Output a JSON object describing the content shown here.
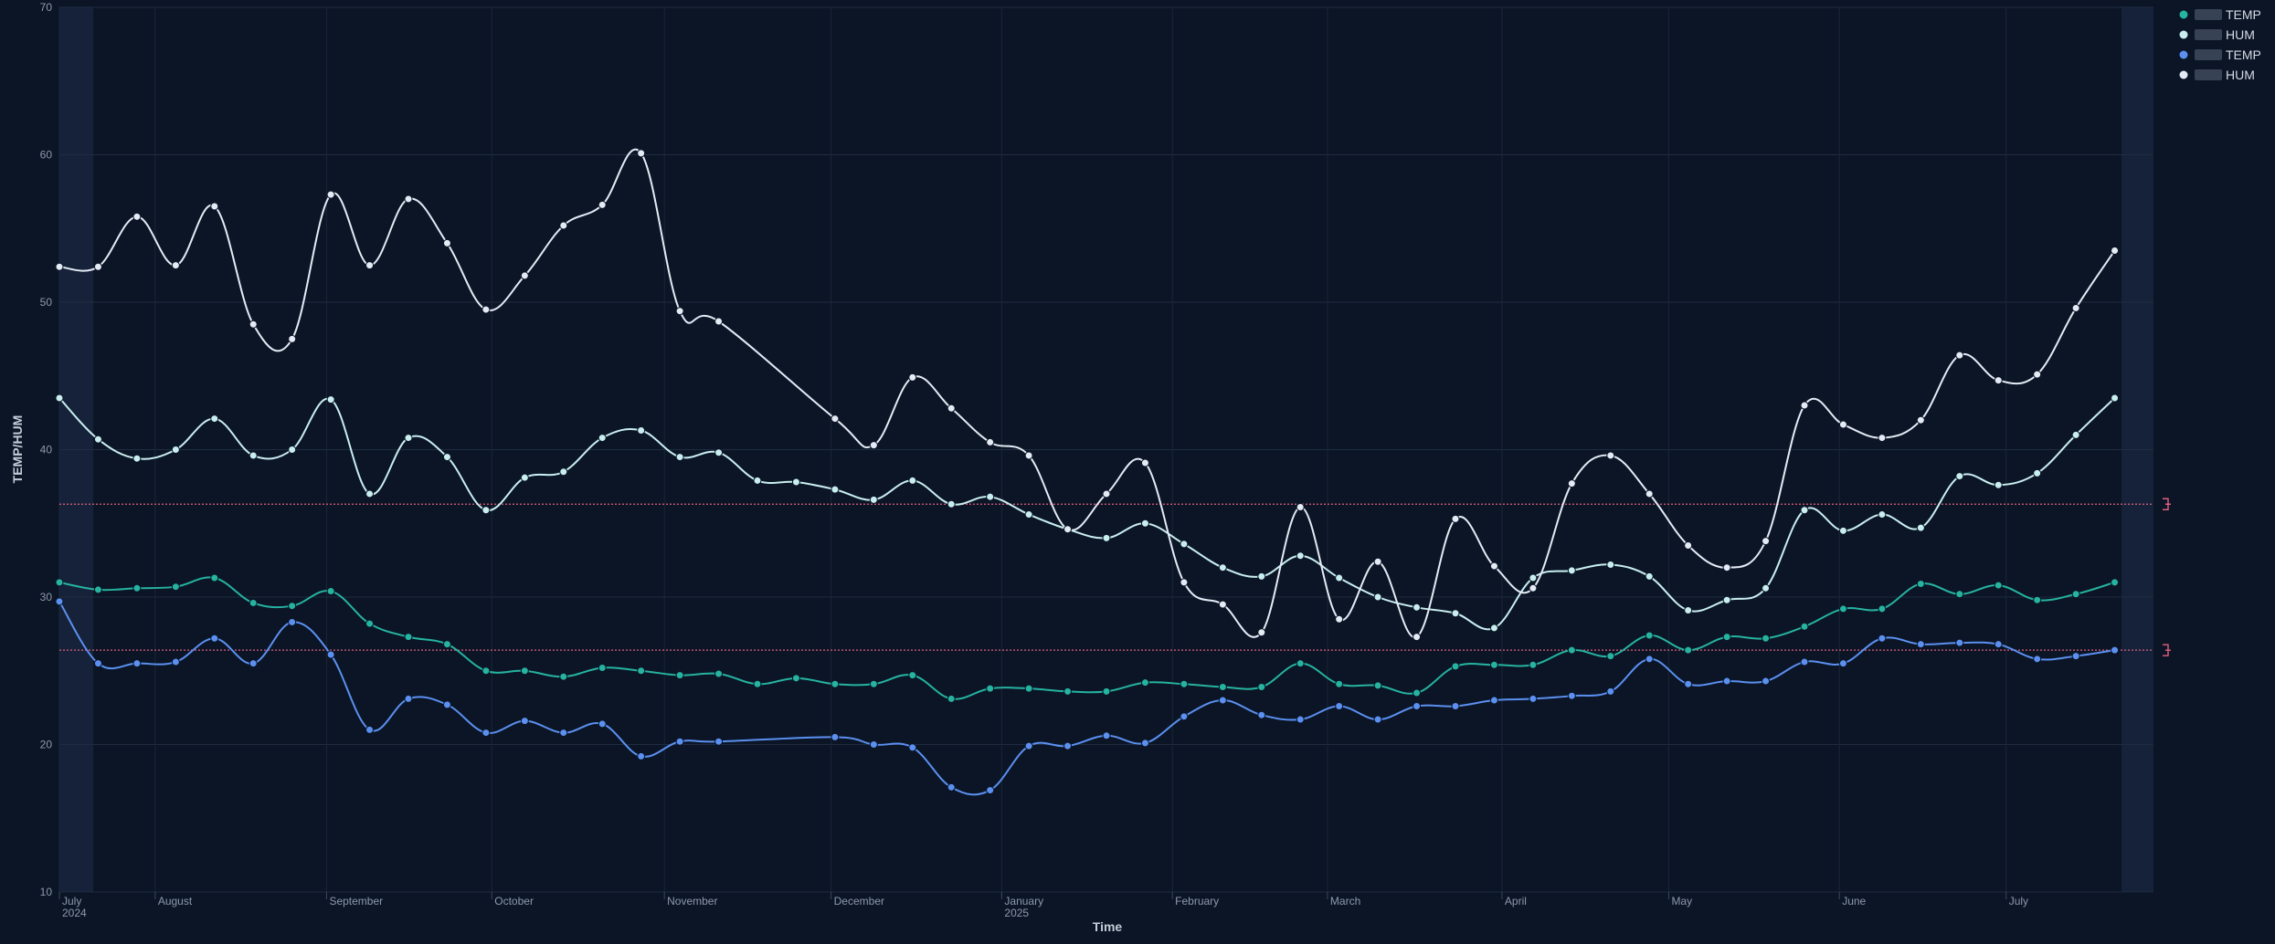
{
  "chart_data": {
    "type": "line",
    "xlabel": "Time",
    "ylabel": "TEMP/HUM",
    "xlim": [
      0,
      54
    ],
    "ylim": [
      10,
      70
    ],
    "yticks": [
      10,
      20,
      30,
      40,
      50,
      60,
      70
    ],
    "xticks": [
      {
        "value": 0,
        "label": "July",
        "sublabel": "2024"
      },
      {
        "value": 2.47,
        "label": "August"
      },
      {
        "value": 6.89,
        "label": "September"
      },
      {
        "value": 11.15,
        "label": "October"
      },
      {
        "value": 15.6,
        "label": "November"
      },
      {
        "value": 19.9,
        "label": "December"
      },
      {
        "value": 24.3,
        "label": "January",
        "sublabel": "2025"
      },
      {
        "value": 28.7,
        "label": "February"
      },
      {
        "value": 32.7,
        "label": "March"
      },
      {
        "value": 37.2,
        "label": "April"
      },
      {
        "value": 41.5,
        "label": "May"
      },
      {
        "value": 45.9,
        "label": "June"
      },
      {
        "value": 50.2,
        "label": "July"
      }
    ],
    "grid": true,
    "legend": "top-right",
    "thresholds": [
      {
        "value": 36.3,
        "color": "#e0607e"
      },
      {
        "value": 26.4,
        "color": "#e0607e"
      }
    ],
    "series": [
      {
        "name": "TEMP",
        "color": "#26b3a0",
        "x": [
          0,
          1,
          2,
          3,
          4,
          5,
          6,
          7,
          8,
          9,
          10,
          11,
          12,
          13,
          14,
          15,
          16,
          17,
          18,
          19,
          20,
          21,
          22,
          23,
          24,
          25,
          26,
          27,
          28,
          29,
          30,
          31,
          32,
          33,
          34,
          35,
          36,
          37,
          38,
          39,
          40,
          41,
          42,
          43,
          44,
          45,
          46,
          47,
          48,
          49,
          50,
          51,
          52,
          53
        ],
        "values": [
          31.0,
          30.5,
          30.6,
          30.7,
          31.3,
          29.6,
          29.4,
          30.4,
          28.2,
          27.3,
          26.8,
          25.0,
          25.0,
          24.6,
          25.2,
          25.0,
          24.7,
          24.8,
          24.1,
          24.5,
          24.1,
          24.1,
          24.7,
          23.1,
          23.8,
          23.8,
          23.6,
          23.6,
          24.2,
          24.1,
          23.9,
          23.9,
          25.5,
          24.1,
          24.0,
          23.5,
          25.3,
          25.4,
          25.4,
          26.4,
          26.0,
          27.4,
          26.4,
          27.3,
          27.2,
          28.0,
          29.2,
          29.2,
          30.9,
          30.2,
          30.8,
          29.8,
          30.2,
          31.0
        ]
      },
      {
        "name": "HUM",
        "color": "#c9eef0",
        "x": [
          0,
          1,
          2,
          3,
          4,
          5,
          6,
          7,
          8,
          9,
          10,
          11,
          12,
          13,
          14,
          15,
          16,
          17,
          18,
          19,
          20,
          21,
          22,
          23,
          24,
          25,
          26,
          27,
          28,
          29,
          30,
          31,
          32,
          33,
          34,
          35,
          36,
          37,
          38,
          39,
          40,
          41,
          42,
          43,
          44,
          45,
          46,
          47,
          48,
          49,
          50,
          51,
          52,
          53
        ],
        "values": [
          43.5,
          40.7,
          39.4,
          40.0,
          42.1,
          39.6,
          40.0,
          43.4,
          37.0,
          40.8,
          39.5,
          35.9,
          38.1,
          38.5,
          40.8,
          41.3,
          39.5,
          39.8,
          37.9,
          37.8,
          37.3,
          36.6,
          37.9,
          36.3,
          36.8,
          35.6,
          34.6,
          34.0,
          35.0,
          33.6,
          32.0,
          31.4,
          32.8,
          31.3,
          30.0,
          29.3,
          28.9,
          27.9,
          31.3,
          31.8,
          32.2,
          31.4,
          29.1,
          29.8,
          30.6,
          35.9,
          34.5,
          35.6,
          34.7,
          38.2,
          37.6,
          38.4,
          41.0,
          43.5
        ]
      },
      {
        "name": "TEMP",
        "color": "#5b90f0",
        "x": [
          0,
          1,
          2,
          3,
          4,
          5,
          6,
          7,
          8,
          9,
          10,
          11,
          12,
          13,
          14,
          15,
          16,
          17,
          20,
          21,
          22,
          23,
          24,
          25,
          26,
          27,
          28,
          29,
          30,
          31,
          32,
          33,
          34,
          35,
          36,
          37,
          38,
          39,
          40,
          41,
          42,
          43,
          44,
          45,
          46,
          47,
          48,
          49,
          50,
          51,
          52,
          53
        ],
        "values": [
          29.7,
          25.5,
          25.5,
          25.6,
          27.2,
          25.5,
          28.3,
          26.1,
          21.0,
          23.1,
          22.7,
          20.8,
          21.6,
          20.8,
          21.4,
          19.2,
          20.2,
          20.2,
          20.5,
          20.0,
          19.8,
          17.1,
          16.9,
          19.9,
          19.9,
          20.6,
          20.1,
          21.9,
          23.0,
          22.0,
          21.7,
          22.6,
          21.7,
          22.6,
          22.6,
          23.0,
          23.1,
          23.3,
          23.6,
          25.8,
          24.1,
          24.3,
          24.3,
          25.6,
          25.5,
          27.2,
          26.8,
          26.9,
          26.8,
          25.8,
          26.0,
          26.4
        ]
      },
      {
        "name": "HUM",
        "color": "#e4ebf5",
        "x": [
          0,
          1,
          2,
          3,
          4,
          5,
          6,
          7,
          8,
          9,
          10,
          11,
          12,
          13,
          14,
          15,
          16,
          17,
          20,
          21,
          22,
          23,
          24,
          25,
          26,
          27,
          28,
          29,
          30,
          31,
          32,
          33,
          34,
          35,
          36,
          37,
          38,
          39,
          40,
          41,
          42,
          43,
          44,
          45,
          46,
          47,
          48,
          49,
          50,
          51,
          52,
          53
        ],
        "values": [
          52.4,
          52.4,
          55.8,
          52.5,
          56.5,
          48.5,
          47.5,
          57.3,
          52.5,
          57.0,
          54.0,
          49.5,
          51.8,
          55.2,
          56.6,
          60.1,
          49.4,
          48.7,
          42.1,
          40.3,
          44.9,
          42.8,
          40.5,
          39.6,
          34.6,
          37.0,
          39.1,
          31.0,
          29.5,
          27.6,
          36.1,
          28.5,
          32.4,
          27.3,
          35.3,
          32.1,
          30.6,
          37.7,
          39.6,
          37.0,
          33.5,
          32.0,
          33.8,
          43.0,
          41.7,
          40.8,
          42.0,
          46.4,
          44.7,
          45.1,
          49.6,
          53.5
        ]
      }
    ]
  }
}
